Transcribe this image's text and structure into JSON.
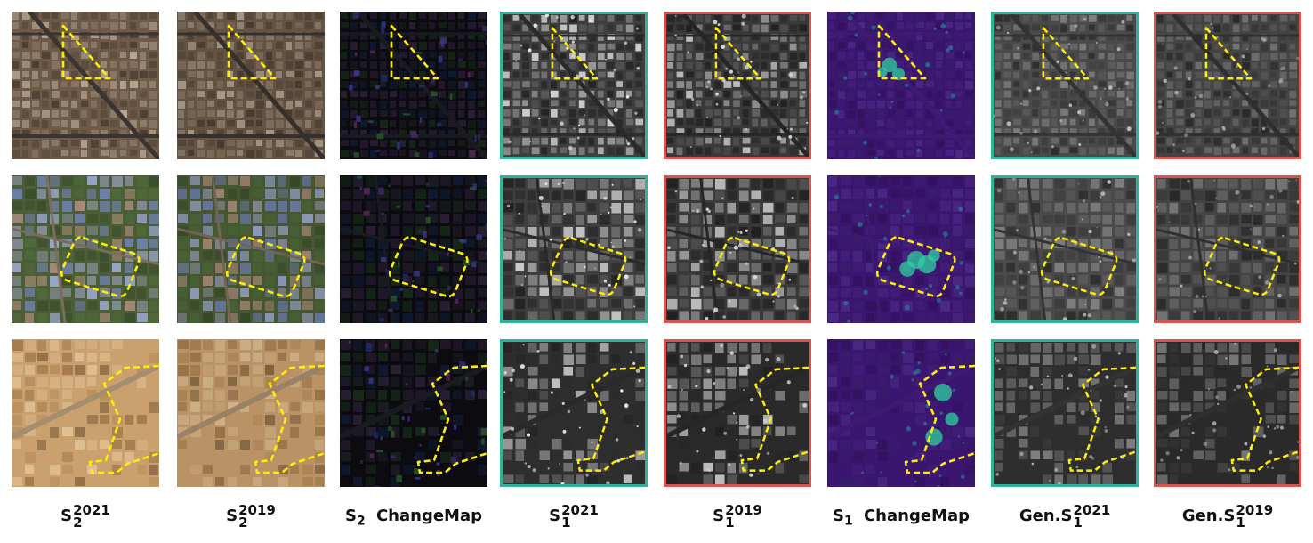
{
  "columns": [
    {
      "id": "s2-2021",
      "base": "S",
      "sub": "2",
      "sup": "2021",
      "rest": "",
      "kind": "optical",
      "year": "2021",
      "frame": "none"
    },
    {
      "id": "s2-2019",
      "base": "S",
      "sub": "2",
      "sup": "2019",
      "rest": "",
      "kind": "optical",
      "year": "2019",
      "frame": "none"
    },
    {
      "id": "s2-changemap",
      "base": "S",
      "sub": "2",
      "sup": "",
      "rest": "ChangeMap",
      "kind": "s2change",
      "year": "",
      "frame": "none"
    },
    {
      "id": "s1-2021",
      "base": "S",
      "sub": "1",
      "sup": "2021",
      "rest": "",
      "kind": "sar",
      "year": "2021",
      "frame": "teal"
    },
    {
      "id": "s1-2019",
      "base": "S",
      "sub": "1",
      "sup": "2019",
      "rest": "",
      "kind": "sar",
      "year": "2019",
      "frame": "red"
    },
    {
      "id": "s1-changemap",
      "base": "S",
      "sub": "1",
      "sup": "",
      "rest": "ChangeMap",
      "kind": "s1change",
      "year": "",
      "frame": "none"
    },
    {
      "id": "gen-s1-2021",
      "base": "Gen.S",
      "sub": "1",
      "sup": "2021",
      "rest": "",
      "kind": "gen",
      "year": "2021",
      "frame": "teal"
    },
    {
      "id": "gen-s1-2019",
      "base": "Gen.S",
      "sub": "1",
      "sup": "2019",
      "rest": "",
      "kind": "gen",
      "year": "2019",
      "frame": "red"
    }
  ],
  "rows": [
    {
      "id": "urban-triangle",
      "scene": "urban",
      "outline": "triangle"
    },
    {
      "id": "industrial-rectangle",
      "scene": "industrial",
      "outline": "rounded-rectangle"
    },
    {
      "id": "desert-polygon",
      "scene": "desert",
      "outline": "polygon"
    }
  ],
  "colors": {
    "outline": "#ffee00",
    "frame_teal": "#2fb39c",
    "frame_red": "#d9534f",
    "changemap_s1_bg": "#3b1670",
    "changemap_s1_hi": "#2fd0a0"
  }
}
